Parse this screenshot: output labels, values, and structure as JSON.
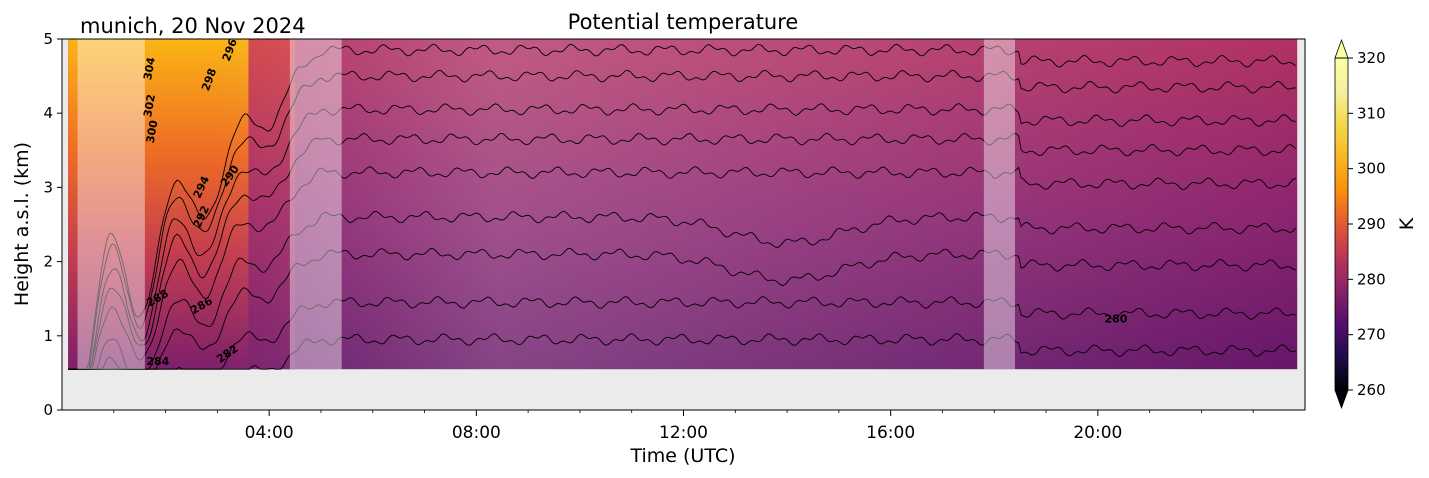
{
  "chart_data": {
    "type": "heatmap",
    "title": "Potential temperature",
    "subtitle": "munich, 20 Nov 2024",
    "xlabel": "Time (UTC)",
    "ylabel": "Height a.s.l. (km)",
    "colorbar_label": "K",
    "xlim_hours": [
      0,
      24
    ],
    "ylim": [
      0,
      5
    ],
    "x_ticks": [
      "04:00",
      "08:00",
      "12:00",
      "16:00",
      "20:00"
    ],
    "y_ticks": [
      "0",
      "1",
      "2",
      "3",
      "4",
      "5"
    ],
    "colorbar_ticks": [
      "260",
      "270",
      "280",
      "290",
      "300",
      "310",
      "320"
    ],
    "colorbar_range": [
      260,
      320
    ],
    "colormap": "inferno",
    "data_start_height_km": 0.55,
    "data_end_hour": 23.85,
    "missing_color": "#ebebeb",
    "shaded_periods_hours": [
      [
        0.3,
        1.6
      ],
      [
        4.4,
        5.4
      ],
      [
        17.8,
        18.4
      ]
    ],
    "contour_labels": [
      {
        "text": "304",
        "t": 1.7,
        "h": 4.6,
        "angle": -80
      },
      {
        "text": "302",
        "t": 1.7,
        "h": 4.1,
        "angle": -80
      },
      {
        "text": "300",
        "t": 1.75,
        "h": 3.75,
        "angle": -80
      },
      {
        "text": "298",
        "t": 2.85,
        "h": 4.45,
        "angle": -70
      },
      {
        "text": "296",
        "t": 3.25,
        "h": 4.85,
        "angle": -70
      },
      {
        "text": "294",
        "t": 2.7,
        "h": 3.0,
        "angle": -65
      },
      {
        "text": "292",
        "t": 2.7,
        "h": 2.6,
        "angle": -65
      },
      {
        "text": "290",
        "t": 3.25,
        "h": 3.15,
        "angle": -55
      },
      {
        "text": "288",
        "t": 1.85,
        "h": 1.5,
        "angle": -30
      },
      {
        "text": "286",
        "t": 2.7,
        "h": 1.4,
        "angle": -30
      },
      {
        "text": "284",
        "t": 1.85,
        "h": 0.65,
        "angle": 0
      },
      {
        "text": "282",
        "t": 3.2,
        "h": 0.75,
        "angle": -35
      },
      {
        "text": "280",
        "t": 20.35,
        "h": 1.22,
        "angle": 0
      }
    ]
  }
}
